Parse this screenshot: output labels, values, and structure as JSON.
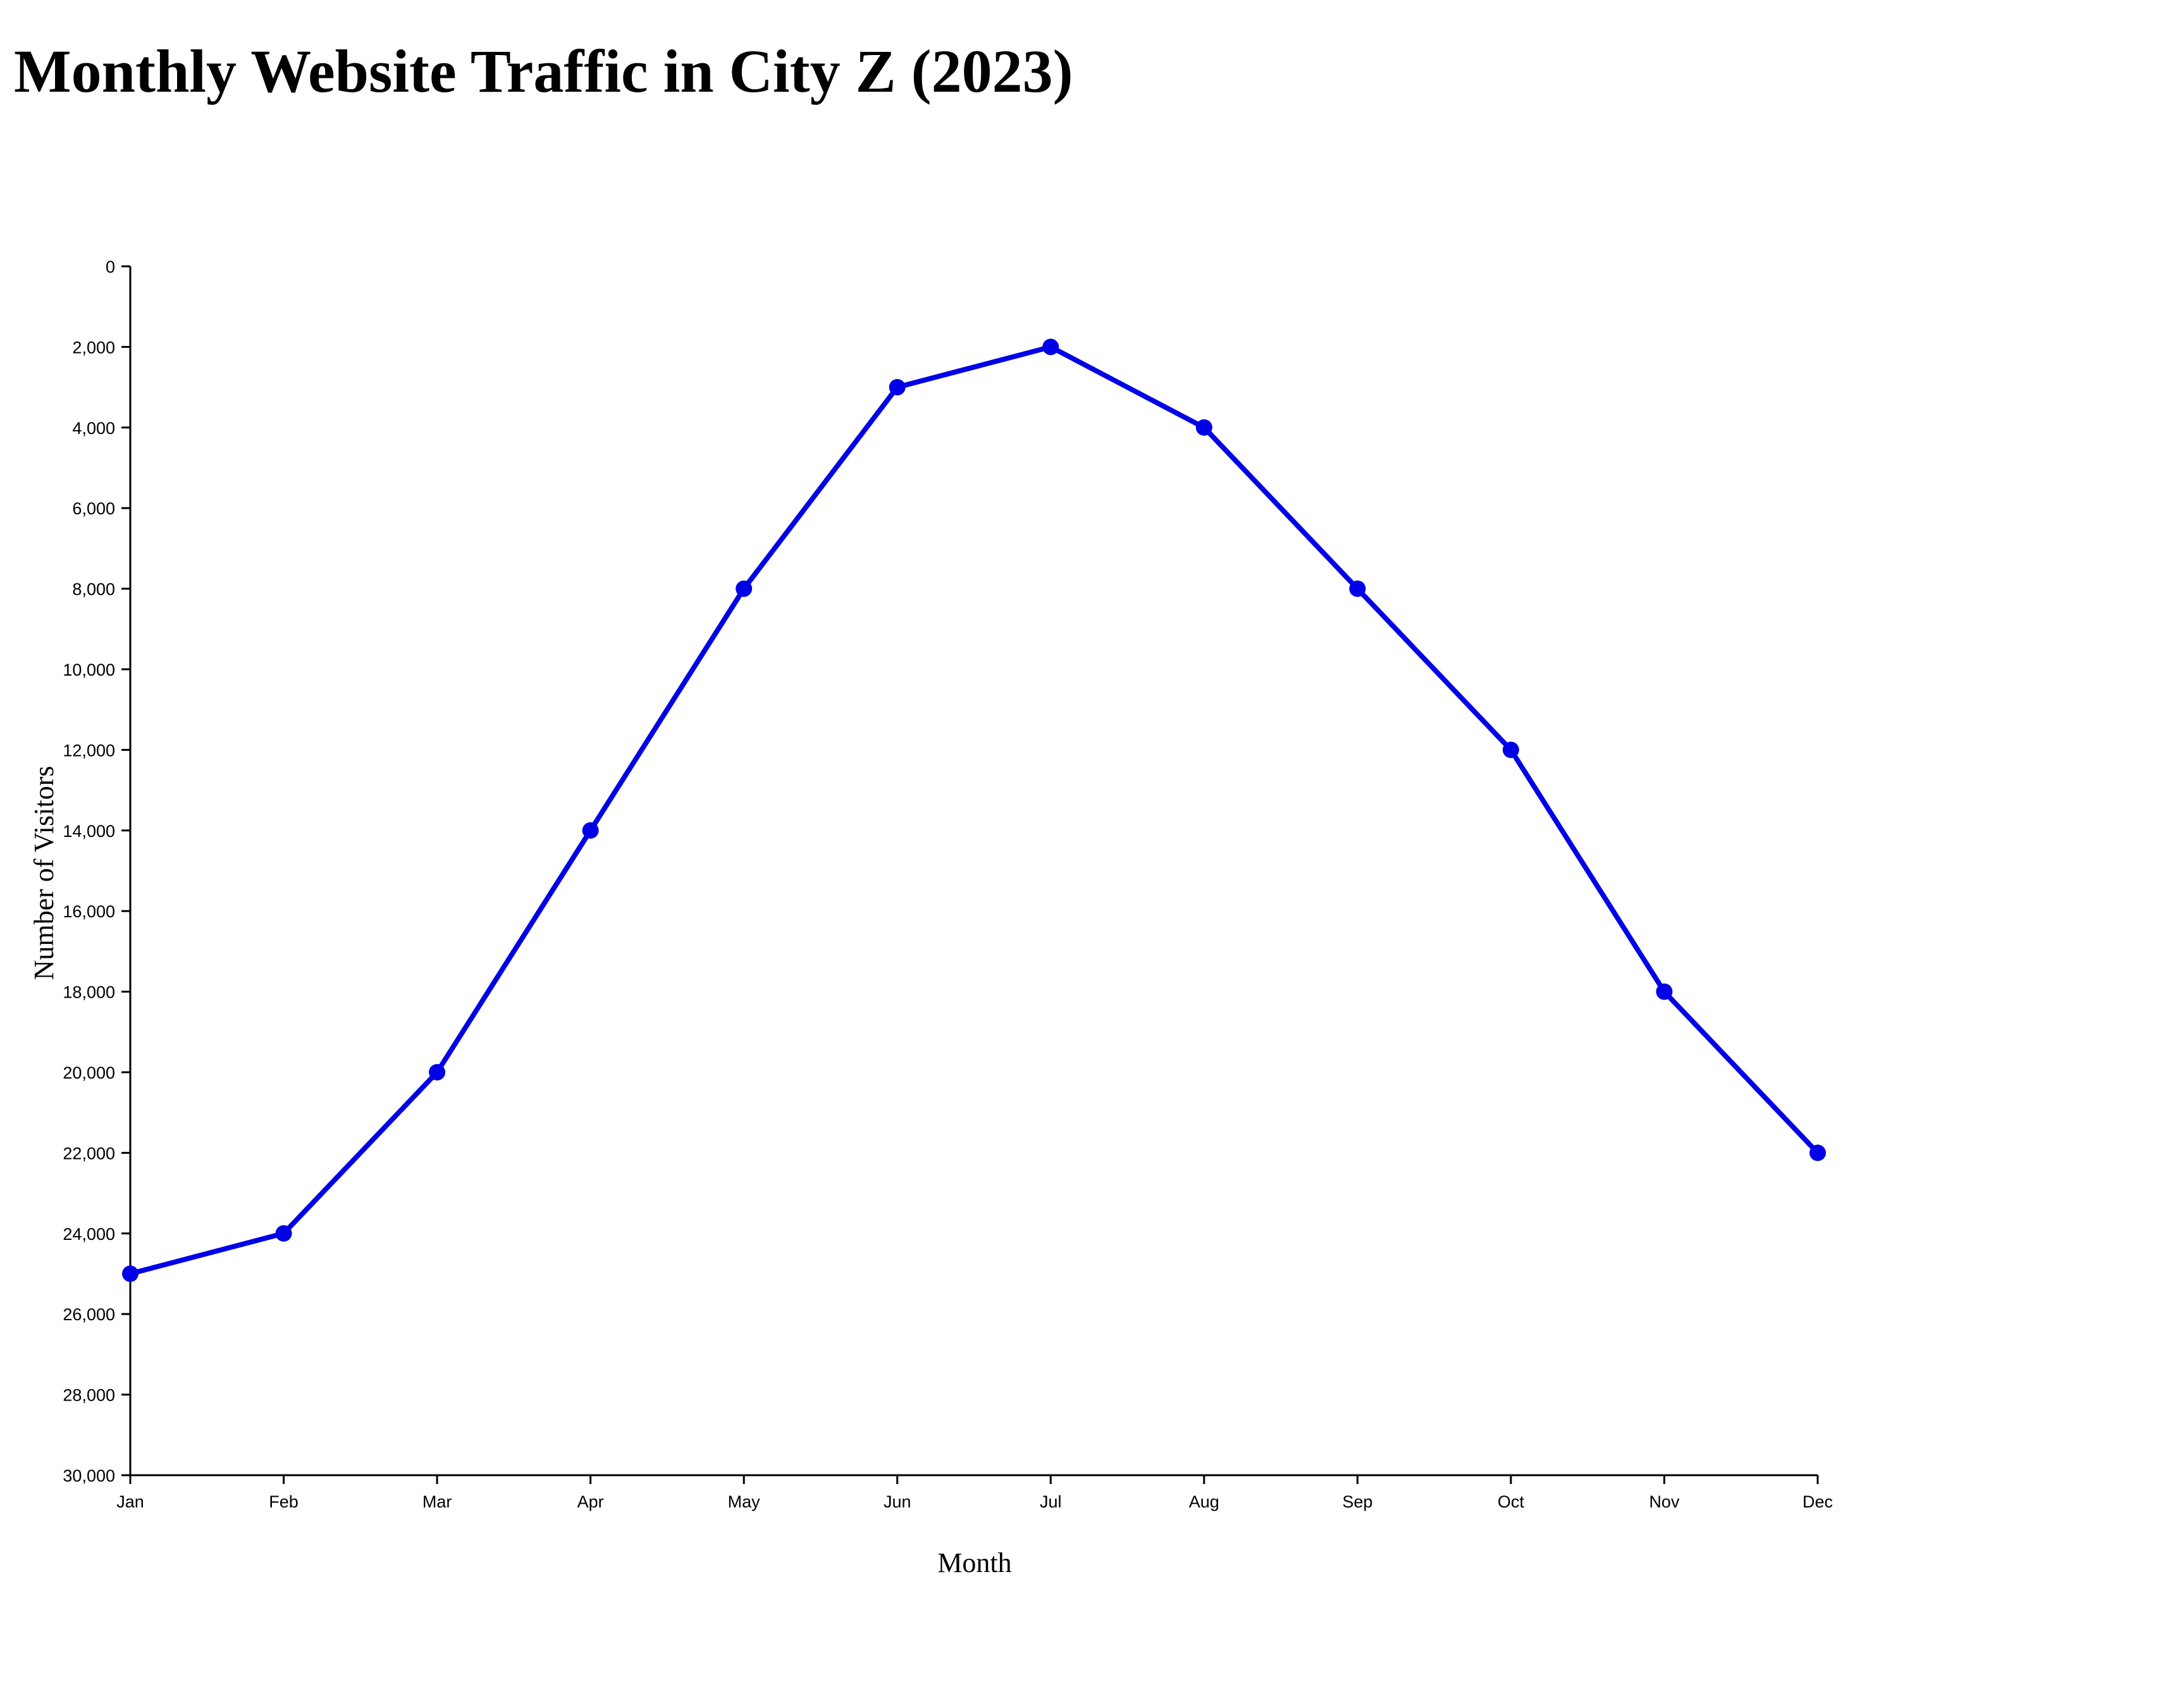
{
  "title": "Monthly Website Traffic in City Z (2023)",
  "chart_data": {
    "type": "line",
    "title": "Monthly Website Traffic in City Z (2023)",
    "xlabel": "Month",
    "ylabel": "Number of Visitors",
    "categories": [
      "Jan",
      "Feb",
      "Mar",
      "Apr",
      "May",
      "Jun",
      "Jul",
      "Aug",
      "Sep",
      "Oct",
      "Nov",
      "Dec"
    ],
    "series": [
      {
        "values": [
          25000,
          24000,
          20000,
          14000,
          8000,
          3000,
          2000,
          4000,
          8000,
          12000,
          18000,
          22000
        ],
        "color": "#0000e6"
      }
    ],
    "ylim": [
      0,
      30000
    ],
    "y_inverted": true,
    "yticks": [
      0,
      2000,
      4000,
      6000,
      8000,
      10000,
      12000,
      14000,
      16000,
      18000,
      20000,
      22000,
      24000,
      26000,
      28000,
      30000
    ],
    "ytick_labels": [
      "0",
      "2,000",
      "4,000",
      "6,000",
      "8,000",
      "10,000",
      "12,000",
      "14,000",
      "16,000",
      "18,000",
      "20,000",
      "22,000",
      "24,000",
      "26,000",
      "28,000",
      "30,000"
    ],
    "grid": false,
    "legend": "none",
    "markers": true
  }
}
